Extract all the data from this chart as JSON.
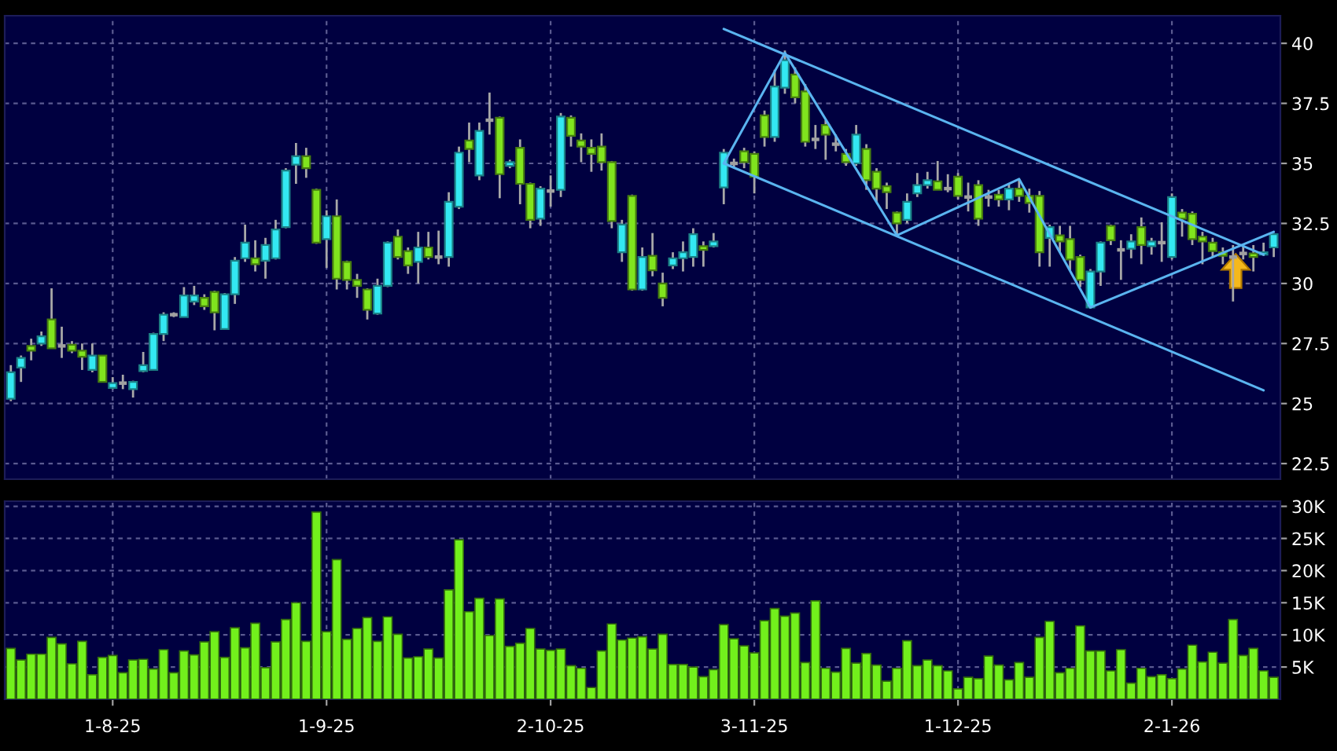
{
  "chart_data": [
    {
      "type": "candlestick",
      "categories": [
        null,
        null,
        null,
        null,
        null,
        null,
        null,
        null,
        null,
        null,
        null,
        null,
        null,
        null,
        null,
        null,
        null,
        null,
        null,
        null,
        null,
        null,
        null,
        null,
        null,
        null,
        null,
        null,
        null,
        null,
        null,
        null,
        null,
        null,
        null,
        null,
        null,
        null,
        null,
        null,
        null,
        null,
        null,
        null,
        null,
        null,
        null,
        null,
        null,
        null,
        null,
        null,
        null,
        null,
        null,
        null,
        null,
        null,
        null,
        null,
        null,
        null,
        null,
        null,
        null,
        null,
        null,
        null,
        null,
        null,
        null,
        null,
        null,
        null,
        null,
        null,
        null,
        null,
        null,
        null,
        null,
        null,
        null,
        null,
        null,
        null,
        null,
        null,
        null,
        null,
        null,
        null,
        null,
        null,
        null,
        null,
        null,
        null,
        null,
        null,
        null,
        null,
        null,
        null,
        null,
        null,
        null,
        null,
        null,
        null,
        null,
        null,
        null,
        null,
        null,
        null,
        null,
        null,
        null,
        null,
        null,
        null,
        null,
        null,
        null
      ],
      "ohlc": [
        [
          25.2,
          26.6,
          25.1,
          26.3
        ],
        [
          26.5,
          27.0,
          25.9,
          26.9
        ],
        [
          27.4,
          27.7,
          26.8,
          27.2
        ],
        [
          27.5,
          28.0,
          27.4,
          27.8
        ],
        [
          28.5,
          29.8,
          27.3,
          27.3
        ],
        [
          27.4,
          28.2,
          26.9,
          27.4
        ],
        [
          27.45,
          27.6,
          27.1,
          27.2
        ],
        [
          27.2,
          27.5,
          26.4,
          26.95
        ],
        [
          26.4,
          27.5,
          26.3,
          27.0
        ],
        [
          27.0,
          27.0,
          25.9,
          25.9
        ],
        [
          25.65,
          26.1,
          25.6,
          25.85
        ],
        [
          25.85,
          26.2,
          25.6,
          25.85
        ],
        [
          25.6,
          25.95,
          25.25,
          25.9
        ],
        [
          26.35,
          27.15,
          26.3,
          26.6
        ],
        [
          26.4,
          27.95,
          26.4,
          27.9
        ],
        [
          27.9,
          28.8,
          27.6,
          28.7
        ],
        [
          28.7,
          28.8,
          28.6,
          28.7
        ],
        [
          28.6,
          29.85,
          28.6,
          29.5
        ],
        [
          29.25,
          29.9,
          29.1,
          29.5
        ],
        [
          29.4,
          29.55,
          28.9,
          29.05
        ],
        [
          29.65,
          29.7,
          28.05,
          28.8
        ],
        [
          28.1,
          29.6,
          28.1,
          29.55
        ],
        [
          29.55,
          31.1,
          29.15,
          30.95
        ],
        [
          31.05,
          32.45,
          30.9,
          31.7
        ],
        [
          31.05,
          31.8,
          30.5,
          30.8
        ],
        [
          30.95,
          31.9,
          30.2,
          31.6
        ],
        [
          31.05,
          32.65,
          31.0,
          32.25
        ],
        [
          32.35,
          34.8,
          32.3,
          34.7
        ],
        [
          34.95,
          35.85,
          34.15,
          35.3
        ],
        [
          35.3,
          35.65,
          34.4,
          34.8
        ],
        [
          33.9,
          33.95,
          31.65,
          31.7
        ],
        [
          31.85,
          33.05,
          30.65,
          32.8
        ],
        [
          32.8,
          33.5,
          29.75,
          30.2
        ],
        [
          30.9,
          30.95,
          29.75,
          30.15
        ],
        [
          30.15,
          30.4,
          29.4,
          29.9
        ],
        [
          29.75,
          29.8,
          28.5,
          28.9
        ],
        [
          28.75,
          30.2,
          28.7,
          29.9
        ],
        [
          29.9,
          31.75,
          29.85,
          31.7
        ],
        [
          31.95,
          32.25,
          31.0,
          31.1
        ],
        [
          31.35,
          31.5,
          30.4,
          30.75
        ],
        [
          30.9,
          32.15,
          30.0,
          31.5
        ],
        [
          31.5,
          32.15,
          31.0,
          31.1
        ],
        [
          31.1,
          32.2,
          30.8,
          31.1
        ],
        [
          31.1,
          33.8,
          30.7,
          33.4
        ],
        [
          33.2,
          35.7,
          33.1,
          35.45
        ],
        [
          35.95,
          36.7,
          35.05,
          35.6
        ],
        [
          34.5,
          36.7,
          34.3,
          36.35
        ],
        [
          36.8,
          37.95,
          36.2,
          36.8
        ],
        [
          36.9,
          36.95,
          33.55,
          34.55
        ],
        [
          34.9,
          35.15,
          34.8,
          35.05
        ],
        [
          35.65,
          36.0,
          33.3,
          34.15
        ],
        [
          34.15,
          34.2,
          32.3,
          32.65
        ],
        [
          32.7,
          34.05,
          32.4,
          33.95
        ],
        [
          33.85,
          34.5,
          33.2,
          33.85
        ],
        [
          33.9,
          37.1,
          33.6,
          36.95
        ],
        [
          36.9,
          37.0,
          35.7,
          36.15
        ],
        [
          35.95,
          36.25,
          35.05,
          35.7
        ],
        [
          35.65,
          36.0,
          34.65,
          35.4
        ],
        [
          35.7,
          36.25,
          34.7,
          35.05
        ],
        [
          35.05,
          35.1,
          32.3,
          32.6
        ],
        [
          31.3,
          32.65,
          30.9,
          32.45
        ],
        [
          33.65,
          33.7,
          29.7,
          29.75
        ],
        [
          29.75,
          31.5,
          29.7,
          31.1
        ],
        [
          31.15,
          32.1,
          30.3,
          30.55
        ],
        [
          30.0,
          30.45,
          29.05,
          29.4
        ],
        [
          30.75,
          31.3,
          30.6,
          31.05
        ],
        [
          31.05,
          31.75,
          30.5,
          31.3
        ],
        [
          31.1,
          32.3,
          30.7,
          32.05
        ],
        [
          31.55,
          31.75,
          30.7,
          31.4
        ],
        [
          31.55,
          32.1,
          31.5,
          31.75
        ],
        [
          34.0,
          35.6,
          33.3,
          35.45
        ],
        [
          35.0,
          35.2,
          34.8,
          35.0
        ],
        [
          35.5,
          35.65,
          34.8,
          35.05
        ],
        [
          35.4,
          35.5,
          33.75,
          34.45
        ],
        [
          37.0,
          37.2,
          35.7,
          36.1
        ],
        [
          36.1,
          38.9,
          35.9,
          38.2
        ],
        [
          38.15,
          39.7,
          37.9,
          39.3
        ],
        [
          38.7,
          39.0,
          37.5,
          37.75
        ],
        [
          38.0,
          38.3,
          35.7,
          35.9
        ],
        [
          36.0,
          36.6,
          35.6,
          36.0
        ],
        [
          36.6,
          36.8,
          35.15,
          36.2
        ],
        [
          35.8,
          36.2,
          35.5,
          35.8
        ],
        [
          35.4,
          35.6,
          34.9,
          35.05
        ],
        [
          35.0,
          36.6,
          34.9,
          36.2
        ],
        [
          35.6,
          35.8,
          33.9,
          34.3
        ],
        [
          34.65,
          34.8,
          33.4,
          33.95
        ],
        [
          34.05,
          34.2,
          33.1,
          33.8
        ],
        [
          32.95,
          33.0,
          32.0,
          32.5
        ],
        [
          32.65,
          33.75,
          32.5,
          33.4
        ],
        [
          33.75,
          34.6,
          33.6,
          34.1
        ],
        [
          34.1,
          34.65,
          33.95,
          34.3
        ],
        [
          34.25,
          35.1,
          33.9,
          33.9
        ],
        [
          33.95,
          34.55,
          33.8,
          33.95
        ],
        [
          34.45,
          34.6,
          33.5,
          33.65
        ],
        [
          33.6,
          34.2,
          33.0,
          33.6
        ],
        [
          34.1,
          34.3,
          32.4,
          32.7
        ],
        [
          33.6,
          33.9,
          33.2,
          33.6
        ],
        [
          33.7,
          33.9,
          33.2,
          33.5
        ],
        [
          33.5,
          34.15,
          33.05,
          33.95
        ],
        [
          33.95,
          34.35,
          33.4,
          33.65
        ],
        [
          33.65,
          33.95,
          32.95,
          33.35
        ],
        [
          33.65,
          33.85,
          30.7,
          31.3
        ],
        [
          31.9,
          32.45,
          30.7,
          32.35
        ],
        [
          32.0,
          32.4,
          31.3,
          31.75
        ],
        [
          31.85,
          32.4,
          30.55,
          31.0
        ],
        [
          31.1,
          31.2,
          29.85,
          30.15
        ],
        [
          29.0,
          30.6,
          28.95,
          30.5
        ],
        [
          30.5,
          31.75,
          29.9,
          31.7
        ],
        [
          32.4,
          32.45,
          31.6,
          31.8
        ],
        [
          31.4,
          31.8,
          30.15,
          31.4
        ],
        [
          31.45,
          32.05,
          31.05,
          31.75
        ],
        [
          32.35,
          32.75,
          30.8,
          31.6
        ],
        [
          31.55,
          31.9,
          31.2,
          31.75
        ],
        [
          31.7,
          32.55,
          30.9,
          31.7
        ],
        [
          31.1,
          33.75,
          31.0,
          33.6
        ],
        [
          32.95,
          33.1,
          31.95,
          32.7
        ],
        [
          32.9,
          33.0,
          31.6,
          31.85
        ],
        [
          31.95,
          32.15,
          30.8,
          31.75
        ],
        [
          31.7,
          31.9,
          31.1,
          31.35
        ],
        [
          31.3,
          31.5,
          30.8,
          31.15
        ],
        [
          31.1,
          31.6,
          29.25,
          31.1
        ],
        [
          31.25,
          31.6,
          31.0,
          31.25
        ],
        [
          31.25,
          31.6,
          30.5,
          31.1
        ],
        [
          31.2,
          31.7,
          31.15,
          31.3
        ],
        [
          31.5,
          32.1,
          31.1,
          32.05
        ]
      ],
      "colors": [
        "#33e8f2",
        "#33e8f2",
        "#80e41e",
        "#33e8f2",
        "#80e41e",
        "#a0a0a0",
        "#80e41e",
        "#80e41e",
        "#33e8f2",
        "#80e41e",
        "#33e8f2",
        "#a0a0a0",
        "#33e8f2",
        "#33e8f2",
        "#33e8f2",
        "#33e8f2",
        "#a0a0a0",
        "#33e8f2",
        "#33e8f2",
        "#80e41e",
        "#80e41e",
        "#33e8f2",
        "#33e8f2",
        "#33e8f2",
        "#80e41e",
        "#33e8f2",
        "#33e8f2",
        "#33e8f2",
        "#33e8f2",
        "#80e41e",
        "#80e41e",
        "#33e8f2",
        "#80e41e",
        "#80e41e",
        "#80e41e",
        "#80e41e",
        "#33e8f2",
        "#33e8f2",
        "#80e41e",
        "#80e41e",
        "#33e8f2",
        "#80e41e",
        "#a0a0a0",
        "#33e8f2",
        "#33e8f2",
        "#80e41e",
        "#33e8f2",
        "#a0a0a0",
        "#80e41e",
        "#33e8f2",
        "#80e41e",
        "#80e41e",
        "#33e8f2",
        "#a0a0a0",
        "#33e8f2",
        "#80e41e",
        "#80e41e",
        "#80e41e",
        "#80e41e",
        "#80e41e",
        "#33e8f2",
        "#80e41e",
        "#33e8f2",
        "#80e41e",
        "#80e41e",
        "#33e8f2",
        "#33e8f2",
        "#33e8f2",
        "#80e41e",
        "#33e8f2",
        "#33e8f2",
        "#a0a0a0",
        "#80e41e",
        "#80e41e",
        "#80e41e",
        "#33e8f2",
        "#33e8f2",
        "#80e41e",
        "#80e41e",
        "#a0a0a0",
        "#80e41e",
        "#a0a0a0",
        "#80e41e",
        "#33e8f2",
        "#80e41e",
        "#80e41e",
        "#80e41e",
        "#80e41e",
        "#33e8f2",
        "#33e8f2",
        "#33e8f2",
        "#80e41e",
        "#a0a0a0",
        "#80e41e",
        "#a0a0a0",
        "#80e41e",
        "#a0a0a0",
        "#80e41e",
        "#33e8f2",
        "#80e41e",
        "#80e41e",
        "#80e41e",
        "#33e8f2",
        "#80e41e",
        "#80e41e",
        "#80e41e",
        "#33e8f2",
        "#33e8f2",
        "#80e41e",
        "#a0a0a0",
        "#33e8f2",
        "#80e41e",
        "#33e8f2",
        "#a0a0a0",
        "#33e8f2",
        "#80e41e",
        "#80e41e",
        "#80e41e",
        "#80e41e",
        "#80e41e",
        "#a0a0a0",
        "#a0a0a0",
        "#80e41e",
        "#33e8f2",
        "#33e8f2"
      ],
      "series": [
        {
          "type": "line",
          "color": "#5ab4f0",
          "values": [
            null,
            null,
            null,
            null,
            null,
            null,
            null,
            null,
            null,
            null,
            null,
            null,
            null,
            null,
            null,
            null,
            null,
            null,
            null,
            null,
            null,
            null,
            null,
            null,
            null,
            null,
            null,
            null,
            null,
            null,
            null,
            null,
            null,
            null,
            null,
            null,
            null,
            null,
            null,
            null,
            null,
            null,
            null,
            null,
            null,
            null,
            null,
            null,
            null,
            null,
            null,
            null,
            null,
            null,
            null,
            null,
            null,
            null,
            null,
            null,
            null,
            null,
            null,
            null,
            null,
            null,
            null,
            null,
            null,
            null,
            40.6,
            null,
            null,
            null,
            null,
            null,
            null,
            null,
            null,
            null,
            null,
            null,
            null,
            null,
            null,
            null,
            null,
            null,
            null,
            null,
            null,
            null,
            null,
            null,
            null,
            null,
            null,
            null,
            null,
            null,
            null,
            null,
            null,
            null,
            null,
            null,
            null,
            null,
            null,
            null,
            null,
            null,
            null,
            null,
            null,
            null,
            null,
            null,
            null,
            null,
            null,
            null,
            null,
            31.2,
            null
          ]
        },
        {
          "type": "line",
          "color": "#5ab4f0",
          "values": [
            null,
            null,
            null,
            null,
            null,
            null,
            null,
            null,
            null,
            null,
            null,
            null,
            null,
            null,
            null,
            null,
            null,
            null,
            null,
            null,
            null,
            null,
            null,
            null,
            null,
            null,
            null,
            null,
            null,
            null,
            null,
            null,
            null,
            null,
            null,
            null,
            null,
            null,
            null,
            null,
            null,
            null,
            null,
            null,
            null,
            null,
            null,
            null,
            null,
            null,
            null,
            null,
            null,
            null,
            null,
            null,
            null,
            null,
            null,
            null,
            null,
            null,
            null,
            null,
            null,
            null,
            null,
            null,
            null,
            null,
            35.0,
            null,
            null,
            null,
            null,
            null,
            null,
            null,
            null,
            null,
            null,
            null,
            null,
            null,
            null,
            null,
            null,
            null,
            null,
            null,
            null,
            null,
            null,
            null,
            null,
            null,
            null,
            null,
            null,
            null,
            null,
            null,
            null,
            null,
            null,
            null,
            null,
            null,
            null,
            null,
            null,
            null,
            null,
            null,
            null,
            null,
            null,
            null,
            null,
            null,
            null,
            null,
            null,
            25.55,
            null
          ]
        },
        {
          "type": "line",
          "color": "#5ab4f0",
          "values": [
            null,
            null,
            null,
            null,
            null,
            null,
            null,
            null,
            null,
            null,
            null,
            null,
            null,
            null,
            null,
            null,
            null,
            null,
            null,
            null,
            null,
            null,
            null,
            null,
            null,
            null,
            null,
            null,
            null,
            null,
            null,
            null,
            null,
            null,
            null,
            null,
            null,
            null,
            null,
            null,
            null,
            null,
            null,
            null,
            null,
            null,
            null,
            null,
            null,
            null,
            null,
            null,
            null,
            null,
            null,
            null,
            null,
            null,
            null,
            null,
            null,
            null,
            null,
            null,
            null,
            null,
            null,
            null,
            null,
            null,
            35.0,
            null,
            null,
            null,
            null,
            null,
            39.6,
            null,
            null,
            null,
            null,
            null,
            null,
            null,
            null,
            null,
            null,
            32.0,
            null,
            null,
            null,
            null,
            null,
            null,
            null,
            null,
            null,
            null,
            null,
            34.35,
            null,
            null,
            null,
            null,
            null,
            null,
            29.0,
            null,
            null,
            null,
            null,
            null,
            null,
            null,
            null,
            null,
            null,
            null,
            null,
            null,
            null,
            null,
            null,
            null,
            32.15
          ]
        }
      ],
      "ylim": [
        21.85,
        41.15
      ],
      "yticks": [
        22.5,
        25,
        27.5,
        30,
        32.5,
        35,
        37.5,
        40
      ],
      "grid": true
    },
    {
      "type": "bar",
      "categories": [
        null,
        null,
        null,
        null,
        null,
        null,
        null,
        null,
        null,
        null,
        "1-8-25",
        null,
        null,
        null,
        null,
        null,
        null,
        null,
        null,
        null,
        null,
        null,
        null,
        null,
        null,
        null,
        null,
        null,
        null,
        null,
        null,
        "1-9-25",
        null,
        null,
        null,
        null,
        null,
        null,
        null,
        null,
        null,
        null,
        null,
        null,
        null,
        null,
        null,
        null,
        null,
        null,
        null,
        null,
        null,
        "2-10-25",
        null,
        null,
        null,
        null,
        null,
        null,
        null,
        null,
        null,
        null,
        null,
        null,
        null,
        null,
        null,
        null,
        null,
        null,
        null,
        "3-11-25",
        null,
        null,
        null,
        null,
        null,
        null,
        null,
        null,
        null,
        null,
        null,
        null,
        null,
        null,
        null,
        null,
        null,
        null,
        null,
        "1-12-25",
        null,
        null,
        null,
        null,
        null,
        null,
        null,
        null,
        null,
        null,
        null,
        null,
        null,
        null,
        null,
        null,
        null,
        null,
        null,
        null,
        "2-1-26",
        null,
        null,
        null,
        null,
        null,
        null,
        null,
        null,
        null,
        null
      ],
      "values": [
        7900,
        6100,
        7000,
        7000,
        9600,
        8600,
        5500,
        9000,
        3800,
        6500,
        6800,
        4100,
        6100,
        6200,
        4700,
        7700,
        4100,
        7500,
        6900,
        8900,
        10500,
        6500,
        11100,
        8000,
        11800,
        4900,
        8900,
        12400,
        15000,
        9000,
        29100,
        10500,
        21700,
        9300,
        11000,
        12700,
        9000,
        12800,
        10100,
        6400,
        6600,
        7800,
        6400,
        17000,
        24800,
        13600,
        15700,
        9900,
        15600,
        8200,
        8700,
        11000,
        7800,
        7600,
        7800,
        5200,
        4800,
        1800,
        7500,
        11700,
        9200,
        9500,
        9700,
        7800,
        10100,
        5400,
        5400,
        5000,
        3500,
        4600,
        11600,
        9400,
        8300,
        7200,
        12200,
        14100,
        12900,
        13400,
        5700,
        15300,
        4800,
        4200,
        7900,
        5600,
        7100,
        5300,
        2800,
        4800,
        9100,
        5200,
        6100,
        5200,
        4400,
        1600,
        3400,
        3200,
        6700,
        5300,
        3000,
        5700,
        3400,
        9600,
        12100,
        4100,
        4800,
        11400,
        7500,
        7500,
        4400,
        7700,
        2500,
        4800,
        3500,
        3800,
        3200,
        4700,
        8400,
        5800,
        7300,
        5600,
        12400,
        6800,
        7900,
        4400,
        3400
      ],
      "color": "#72f01c",
      "ylim": [
        0,
        30800
      ],
      "yticks": [
        {
          "value": 5000,
          "label": "5K"
        },
        {
          "value": 10000,
          "label": "10K"
        },
        {
          "value": 15000,
          "label": "15K"
        },
        {
          "value": 20000,
          "label": "20K"
        },
        {
          "value": 25000,
          "label": "25K"
        },
        {
          "value": 30000,
          "label": "30K"
        }
      ],
      "grid": true
    }
  ]
}
